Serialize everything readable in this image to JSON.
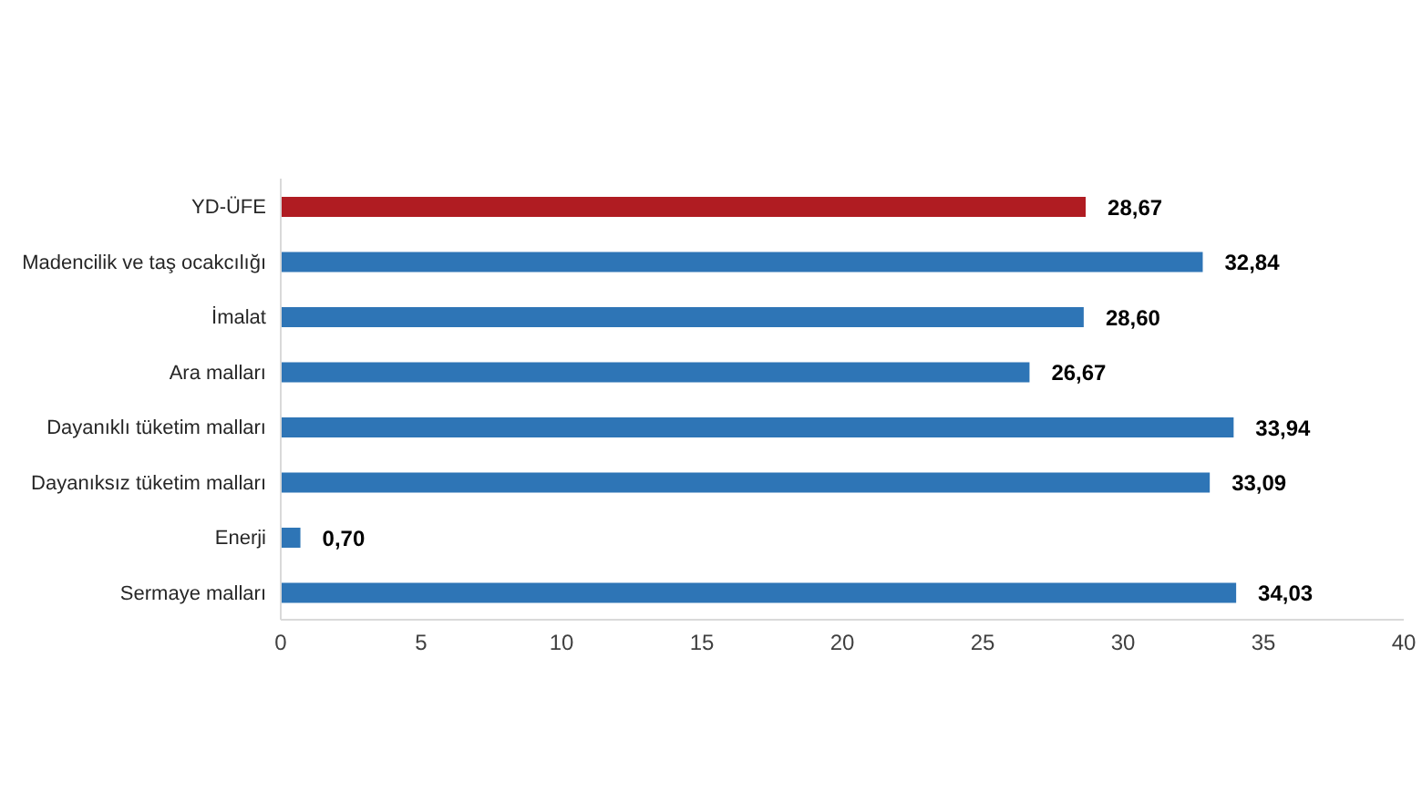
{
  "chart_data": {
    "type": "bar",
    "orientation": "horizontal",
    "categories": [
      "YD-ÜFE",
      "Madencilik ve taş ocakcılığı",
      "İmalat",
      "Ara malları",
      "Dayanıklı tüketim malları",
      "Dayanıksız tüketim malları",
      "Enerji",
      "Sermaye malları"
    ],
    "values": [
      28.67,
      32.84,
      28.6,
      26.67,
      33.94,
      33.09,
      0.7,
      34.03
    ],
    "value_labels": [
      "28,67",
      "32,84",
      "28,60",
      "26,67",
      "33,94",
      "33,09",
      "0,70",
      "34,03"
    ],
    "colors": [
      "#b01c22",
      "#2e75b6",
      "#2e75b6",
      "#2e75b6",
      "#2e75b6",
      "#2e75b6",
      "#2e75b6",
      "#2e75b6"
    ],
    "xlim": [
      0,
      40
    ],
    "xticks": [
      0,
      5,
      10,
      15,
      20,
      25,
      30,
      35,
      40
    ],
    "grid": false
  }
}
